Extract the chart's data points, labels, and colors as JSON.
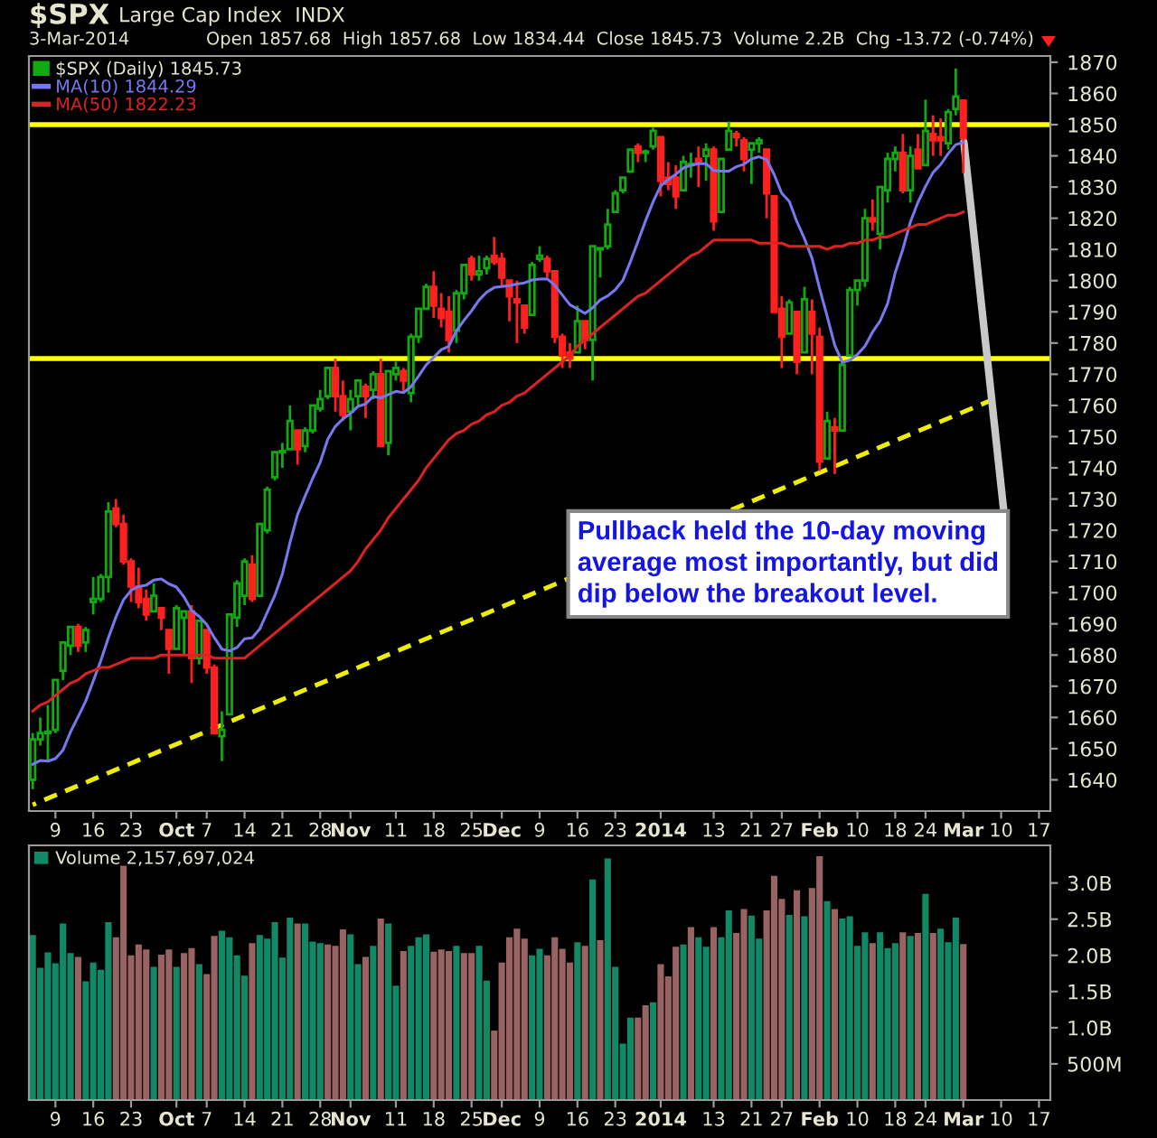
{
  "chart_data": [
    {
      "type": "candlestick",
      "title": "$SPX",
      "subtitle": "Large Cap Index  INDX",
      "annotations": [
        "3-Mar-2014",
        "Open 1857.68  High 1857.68  Low 1834.44  Close 1845.73  Volume 2.2B  Chg -13.72 (-0.74%)",
        {
          "text": "Pullback held the 10-day moving\naverage most importantly, but did\ndip below the breakout level.",
          "x": "Mar",
          "y": 1846
        }
      ],
      "categories": [
        null,
        null,
        null,
        "9",
        null,
        null,
        null,
        null,
        "16",
        null,
        null,
        null,
        null,
        "23",
        null,
        null,
        null,
        null,
        null,
        "Oct",
        null,
        null,
        null,
        "7",
        null,
        null,
        null,
        null,
        "14",
        null,
        null,
        null,
        null,
        "21",
        null,
        null,
        null,
        null,
        "28",
        null,
        null,
        null,
        "Nov",
        null,
        null,
        null,
        null,
        null,
        "11",
        null,
        null,
        null,
        null,
        "18",
        null,
        null,
        null,
        null,
        "25",
        null,
        null,
        null,
        "Dec",
        null,
        null,
        null,
        null,
        "9",
        null,
        null,
        null,
        null,
        "16",
        null,
        null,
        null,
        null,
        "23",
        null,
        null,
        null,
        null,
        null,
        "2014",
        null,
        null,
        null,
        null,
        null,
        null,
        "13",
        null,
        null,
        null,
        null,
        "21",
        null,
        null,
        null,
        "27",
        null,
        null,
        null,
        null,
        "Feb",
        null,
        null,
        null,
        null,
        "10",
        null,
        null,
        null,
        null,
        "18",
        null,
        null,
        null,
        "24",
        null,
        null,
        null,
        null,
        "Mar",
        null,
        null,
        null,
        null,
        "10",
        null,
        null,
        null,
        null,
        "17",
        null
      ],
      "series": [
        {
          "type": "candlestick",
          "name": "$SPX (Daily) 1845.73",
          "color": "#11aa11",
          "ohlc": [
            [
              1640,
              1655,
              1637,
              1653
            ],
            [
              1653,
              1660,
              1651,
              1655
            ],
            [
              1655,
              1664,
              1646,
              1655
            ],
            [
              1656,
              1672,
              1655,
              1672
            ],
            [
              1675,
              1684,
              1672,
              1684
            ],
            [
              1683,
              1689,
              1680,
              1689
            ],
            [
              1689,
              1690,
              1681,
              1683
            ],
            [
              1684,
              1689,
              1681,
              1688
            ],
            [
              1697,
              1705,
              1693,
              1698
            ],
            [
              1698,
              1706,
              1697,
              1705
            ],
            [
              1705,
              1729,
              1700,
              1726
            ],
            [
              1727,
              1730,
              1721,
              1722
            ],
            [
              1722,
              1725,
              1709,
              1710
            ],
            [
              1710,
              1711,
              1697,
              1702
            ],
            [
              1702,
              1708,
              1695,
              1697
            ],
            [
              1698,
              1701,
              1691,
              1693
            ],
            [
              1694,
              1703,
              1694,
              1699
            ],
            [
              1695,
              1695,
              1688,
              1692
            ],
            [
              1688,
              1688,
              1674,
              1682
            ],
            [
              1682,
              1696,
              1682,
              1695
            ],
            [
              1692,
              1694,
              1680,
              1694
            ],
            [
              1694,
              1696,
              1671,
              1679
            ],
            [
              1679,
              1691,
              1677,
              1691
            ],
            [
              1688,
              1688,
              1674,
              1676
            ],
            [
              1676,
              1677,
              1655,
              1655
            ],
            [
              1654,
              1662,
              1646,
              1656
            ],
            [
              1661,
              1693,
              1661,
              1693
            ],
            [
              1692,
              1704,
              1689,
              1703
            ],
            [
              1699,
              1711,
              1696,
              1710
            ],
            [
              1709,
              1712,
              1697,
              1698
            ],
            [
              1699,
              1722,
              1699,
              1722
            ],
            [
              1720,
              1734,
              1719,
              1733
            ],
            [
              1737,
              1745,
              1736,
              1745
            ],
            [
              1745,
              1748,
              1740,
              1745
            ],
            [
              1746,
              1760,
              1746,
              1755
            ],
            [
              1752,
              1752,
              1741,
              1746
            ],
            [
              1747,
              1753,
              1745,
              1752
            ],
            [
              1752,
              1760,
              1751,
              1760
            ],
            [
              1759,
              1765,
              1758,
              1762
            ],
            [
              1763,
              1772,
              1762,
              1772
            ],
            [
              1772,
              1775,
              1758,
              1763
            ],
            [
              1763,
              1768,
              1755,
              1757
            ],
            [
              1758,
              1765,
              1752,
              1762
            ],
            [
              1763,
              1768,
              1760,
              1768
            ],
            [
              1766,
              1767,
              1756,
              1763
            ],
            [
              1765,
              1771,
              1762,
              1770
            ],
            [
              1770,
              1775,
              1747,
              1747
            ],
            [
              1748,
              1771,
              1744,
              1771
            ],
            [
              1770,
              1774,
              1768,
              1772
            ],
            [
              1771,
              1772,
              1764,
              1768
            ],
            [
              1764,
              1783,
              1761,
              1782
            ],
            [
              1782,
              1791,
              1780,
              1791
            ],
            [
              1791,
              1799,
              1791,
              1798
            ],
            [
              1798,
              1803,
              1788,
              1792
            ],
            [
              1791,
              1796,
              1785,
              1788
            ],
            [
              1790,
              1795,
              1777,
              1781
            ],
            [
              1784,
              1797,
              1780,
              1796
            ],
            [
              1796,
              1805,
              1794,
              1805
            ],
            [
              1807,
              1808,
              1800,
              1802
            ],
            [
              1802,
              1808,
              1800,
              1803
            ],
            [
              1804,
              1808,
              1802,
              1807
            ],
            [
              1808,
              1814,
              1805,
              1806
            ],
            [
              1807,
              1809,
              1798,
              1801
            ],
            [
              1800,
              1800,
              1787,
              1795
            ],
            [
              1794,
              1800,
              1780,
              1793
            ],
            [
              1792,
              1792,
              1783,
              1785
            ],
            [
              1789,
              1806,
              1789,
              1805
            ],
            [
              1807,
              1811,
              1806,
              1808
            ],
            [
              1807,
              1808,
              1801,
              1803
            ],
            [
              1803,
              1803,
              1780,
              1782
            ],
            [
              1782,
              1783,
              1772,
              1776
            ],
            [
              1777,
              1780,
              1772,
              1775
            ],
            [
              1777,
              1792,
              1777,
              1787
            ],
            [
              1787,
              1787,
              1778,
              1781
            ],
            [
              1781,
              1811,
              1768,
              1811
            ],
            [
              1810,
              1810,
              1801,
              1810
            ],
            [
              1811,
              1823,
              1810,
              1818
            ],
            [
              1822,
              1829,
              1822,
              1828
            ],
            [
              1829,
              1833,
              1828,
              1833
            ],
            [
              1835,
              1842,
              1835,
              1842
            ],
            [
              1843,
              1844,
              1838,
              1841
            ],
            [
              1841,
              1842,
              1838,
              1841
            ],
            [
              1843,
              1849,
              1842,
              1848
            ],
            [
              1846,
              1846,
              1827,
              1832
            ],
            [
              1833,
              1838,
              1829,
              1831
            ],
            [
              1833,
              1837,
              1823,
              1827
            ],
            [
              1829,
              1840,
              1829,
              1838
            ],
            [
              1837,
              1841,
              1833,
              1837
            ],
            [
              1839,
              1843,
              1830,
              1838
            ],
            [
              1840,
              1844,
              1832,
              1842
            ],
            [
              1842,
              1843,
              1816,
              1819
            ],
            [
              1822,
              1839,
              1822,
              1839
            ],
            [
              1842,
              1851,
              1842,
              1848
            ],
            [
              1847,
              1848,
              1843,
              1846
            ],
            [
              1845,
              1846,
              1835,
              1839
            ],
            [
              1842,
              1844,
              1831,
              1844
            ],
            [
              1844,
              1846,
              1841,
              1845
            ],
            [
              1842,
              1842,
              1820,
              1828
            ],
            [
              1827,
              1827,
              1790,
              1790
            ],
            [
              1791,
              1795,
              1772,
              1782
            ],
            [
              1783,
              1794,
              1783,
              1793
            ],
            [
              1790,
              1790,
              1770,
              1774
            ],
            [
              1777,
              1798,
              1777,
              1794
            ],
            [
              1790,
              1794,
              1770,
              1783
            ],
            [
              1782,
              1785,
              1739,
              1742
            ],
            [
              1743,
              1758,
              1743,
              1755
            ],
            [
              1753,
              1756,
              1738,
              1752
            ],
            [
              1752,
              1774,
              1752,
              1773
            ],
            [
              1776,
              1798,
              1776,
              1797
            ],
            [
              1797,
              1800,
              1792,
              1800
            ],
            [
              1800,
              1823,
              1798,
              1820
            ],
            [
              1820,
              1826,
              1816,
              1819
            ],
            [
              1815,
              1830,
              1810,
              1830
            ],
            [
              1829,
              1841,
              1825,
              1839
            ],
            [
              1839,
              1843,
              1835,
              1841
            ],
            [
              1841,
              1847,
              1828,
              1829
            ],
            [
              1829,
              1843,
              1825,
              1840
            ],
            [
              1842,
              1847,
              1836,
              1836
            ],
            [
              1837,
              1858,
              1837,
              1848
            ],
            [
              1847,
              1853,
              1840,
              1845
            ],
            [
              1846,
              1852,
              1840,
              1845
            ],
            [
              1844,
              1855,
              1842,
              1854
            ],
            [
              1855,
              1868,
              1853,
              1859
            ],
            [
              1857.68,
              1857.68,
              1834.44,
              1845.73
            ],
            null,
            null,
            null,
            null,
            null,
            null,
            null,
            null,
            null,
            null,
            null
          ],
          "colors": [
            "#11aa11",
            "#11aa11",
            "#11aa11",
            "#11aa11",
            "#11aa11",
            "#11aa11",
            "#ff2020",
            "#11aa11",
            "#11aa11",
            "#11aa11",
            "#11aa11",
            "#ff2020",
            "#ff2020",
            "#ff2020",
            "#ff2020",
            "#ff2020",
            "#11aa11",
            "#ff2020",
            "#ff2020",
            "#11aa11",
            "#11aa11",
            "#ff2020",
            "#11aa11",
            "#ff2020",
            "#ff2020",
            "#11aa11",
            "#11aa11",
            "#11aa11",
            "#11aa11",
            "#ff2020",
            "#11aa11",
            "#11aa11",
            "#11aa11",
            "#11aa11",
            "#11aa11",
            "#ff2020",
            "#11aa11",
            "#11aa11",
            "#11aa11",
            "#11aa11",
            "#ff2020",
            "#ff2020",
            "#11aa11",
            "#11aa11",
            "#ff2020",
            "#11aa11",
            "#ff2020",
            "#11aa11",
            "#11aa11",
            "#ff2020",
            "#11aa11",
            "#11aa11",
            "#11aa11",
            "#ff2020",
            "#ff2020",
            "#ff2020",
            "#11aa11",
            "#11aa11",
            "#ff2020",
            "#11aa11",
            "#11aa11",
            "#ff2020",
            "#ff2020",
            "#ff2020",
            "#ff2020",
            "#ff2020",
            "#11aa11",
            "#11aa11",
            "#ff2020",
            "#ff2020",
            "#ff2020",
            "#ff2020",
            "#11aa11",
            "#ff2020",
            "#11aa11",
            "#11aa11",
            "#11aa11",
            "#11aa11",
            "#11aa11",
            "#11aa11",
            "#ff2020",
            "#11aa11",
            "#11aa11",
            "#ff2020",
            "#ff2020",
            "#ff2020",
            "#11aa11",
            "#11aa11",
            "#ff2020",
            "#11aa11",
            "#ff2020",
            "#11aa11",
            "#11aa11",
            "#ff2020",
            "#ff2020",
            "#11aa11",
            "#11aa11",
            "#ff2020",
            "#ff2020",
            "#ff2020",
            "#11aa11",
            "#ff2020",
            "#11aa11",
            "#ff2020",
            "#ff2020",
            "#11aa11",
            "#ff2020",
            "#11aa11",
            "#11aa11",
            "#11aa11",
            "#11aa11",
            "#ff2020",
            "#11aa11",
            "#11aa11",
            "#11aa11",
            "#ff2020",
            "#11aa11",
            "#ff2020",
            "#11aa11",
            "#ff2020",
            "#ff2020",
            "#11aa11",
            "#11aa11",
            "#ff2020",
            null,
            null,
            null,
            null,
            null,
            null,
            null,
            null,
            null,
            null,
            null
          ]
        },
        {
          "type": "line",
          "name": "MA(10) 1844.29",
          "color": "#7777ee",
          "values": [
            1645.0,
            1646.2,
            1646.0,
            1646.8,
            1649.5,
            1655.4,
            1660.2,
            1665.2,
            1671.7,
            1678.2,
            1685.5,
            1692.2,
            1697.7,
            1700.7,
            1702.0,
            1702.4,
            1704.0,
            1704.4,
            1702.8,
            1701.8,
            1698.6,
            1694.3,
            1692.4,
            1689.8,
            1685.6,
            1681.9,
            1681.3,
            1682.4,
            1685.2,
            1685.5,
            1688.3,
            1693.7,
            1699.1,
            1706.0,
            1716.0,
            1725.0,
            1730.9,
            1736.6,
            1741.8,
            1749.2,
            1753.3,
            1755.7,
            1757.4,
            1759.7,
            1760.5,
            1762.9,
            1762.4,
            1763.5,
            1764.5,
            1764.1,
            1766.0,
            1769.4,
            1773.0,
            1775.4,
            1777.9,
            1779.0,
            1783.9,
            1787.3,
            1790.3,
            1793.8,
            1796.3,
            1797.8,
            1798.1,
            1798.4,
            1798.9,
            1799.3,
            1800.2,
            1800.5,
            1800.6,
            1798.5,
            1795.4,
            1792.3,
            1790.9,
            1789.5,
            1791.3,
            1793.8,
            1795.1,
            1797.1,
            1800.1,
            1806.1,
            1812.6,
            1819.2,
            1825.3,
            1830.4,
            1832.4,
            1834.1,
            1836.1,
            1837.0,
            1837.5,
            1837.5,
            1835.3,
            1835.1,
            1835.1,
            1836.5,
            1837.3,
            1839.0,
            1839.7,
            1838.8,
            1834.0,
            1828.0,
            1825.4,
            1818.9,
            1813.5,
            1807.2,
            1797.5,
            1788.6,
            1779.3,
            1773.8,
            1774.5,
            1776.3,
            1779.0,
            1783.5,
            1787.1,
            1792.7,
            1802.6,
            1810.0,
            1818.8,
            1825.1,
            1830.2,
            1834.7,
            1837.2,
            1840.7,
            1843.6,
            1844.3,
            null,
            null,
            null,
            null,
            null,
            null,
            null,
            null,
            null,
            null,
            null
          ]
        },
        {
          "type": "line",
          "name": "MA(50) 1822.23",
          "color": "#dd2222",
          "values": [
            1662,
            1664,
            1665,
            1667,
            1669,
            1671,
            1672,
            1674,
            1675,
            1676,
            1676,
            1677,
            1678,
            1679,
            1679,
            1679,
            1679,
            1680,
            1680,
            1680,
            1680,
            1680,
            1680,
            1680,
            1679,
            1679,
            1679,
            1679,
            1679,
            1681,
            1683,
            1685,
            1687,
            1689,
            1691,
            1693,
            1695,
            1697,
            1699,
            1701,
            1703,
            1705,
            1707,
            1710,
            1714,
            1717,
            1720,
            1724,
            1727,
            1730,
            1733,
            1736,
            1740,
            1743,
            1746,
            1749,
            1751,
            1752,
            1754,
            1755,
            1757,
            1758,
            1760,
            1761,
            1763,
            1764,
            1766,
            1768,
            1770,
            1772,
            1774,
            1776,
            1779,
            1781,
            1783,
            1785,
            1787,
            1789,
            1791,
            1793,
            1795,
            1796,
            1798,
            1800,
            1802,
            1804,
            1806,
            1808,
            1809,
            1811,
            1813,
            1813,
            1813,
            1813,
            1813,
            1813,
            1812,
            1812,
            1812,
            1812,
            1811,
            1811,
            1811,
            1811,
            1811,
            1810,
            1811,
            1811,
            1812,
            1812,
            1813,
            1813,
            1814,
            1814,
            1815,
            1816,
            1817,
            1818,
            1818,
            1819,
            1820,
            1821,
            1821,
            1822,
            null,
            null,
            null,
            null,
            null,
            null,
            null,
            null,
            null,
            null,
            null
          ]
        },
        {
          "type": "line",
          "color": "#eeee00",
          "line_style": "dashed",
          "values": [
            1632,
            null,
            null,
            null,
            null,
            null,
            null,
            null,
            null,
            null,
            null,
            null,
            null,
            null,
            null,
            null,
            null,
            null,
            null,
            null,
            null,
            null,
            null,
            null,
            null,
            null,
            null,
            null,
            null,
            null,
            null,
            null,
            null,
            null,
            null,
            null,
            null,
            null,
            null,
            null,
            null,
            null,
            null,
            null,
            null,
            null,
            null,
            null,
            null,
            null,
            null,
            null,
            null,
            null,
            null,
            null,
            null,
            null,
            null,
            null,
            null,
            null,
            null,
            null,
            null,
            null,
            null,
            null,
            null,
            null,
            null,
            null,
            null,
            null,
            null,
            null,
            null,
            null,
            null,
            null,
            null,
            null,
            null,
            null,
            null,
            null,
            null,
            null,
            null,
            null,
            null,
            null,
            null,
            null,
            null,
            null,
            null,
            null,
            null,
            null,
            null,
            null,
            null,
            null,
            null,
            null,
            null,
            null,
            null,
            null,
            null,
            null,
            null,
            null,
            null,
            null,
            null,
            null,
            null,
            null,
            null,
            null,
            null,
            null,
            null,
            null,
            null,
            1762,
            null,
            null,
            null,
            null,
            null,
            null,
            null
          ]
        }
      ],
      "ref_lines": [
        {
          "axis": "y",
          "value": 1850,
          "color": "#ffff00"
        },
        {
          "axis": "y",
          "value": 1775,
          "color": "#ffff00"
        }
      ],
      "ylim": [
        1630,
        1872
      ],
      "yticks": [
        1640,
        1650,
        1660,
        1670,
        1680,
        1690,
        1700,
        1710,
        1720,
        1730,
        1740,
        1750,
        1760,
        1770,
        1780,
        1790,
        1800,
        1810,
        1820,
        1830,
        1840,
        1850,
        1860,
        1870
      ],
      "legend": "top left"
    },
    {
      "type": "bar",
      "categories": [
        null,
        null,
        null,
        "9",
        null,
        null,
        null,
        null,
        "16",
        null,
        null,
        null,
        null,
        "23",
        null,
        null,
        null,
        null,
        null,
        "Oct",
        null,
        null,
        null,
        "7",
        null,
        null,
        null,
        null,
        "14",
        null,
        null,
        null,
        null,
        "21",
        null,
        null,
        null,
        null,
        "28",
        null,
        null,
        null,
        "Nov",
        null,
        null,
        null,
        null,
        null,
        "11",
        null,
        null,
        null,
        null,
        "18",
        null,
        null,
        null,
        null,
        "25",
        null,
        null,
        null,
        "Dec",
        null,
        null,
        null,
        null,
        "9",
        null,
        null,
        null,
        null,
        "16",
        null,
        null,
        null,
        null,
        "23",
        null,
        null,
        null,
        null,
        null,
        "2014",
        null,
        null,
        null,
        null,
        null,
        null,
        "13",
        null,
        null,
        null,
        null,
        "21",
        null,
        null,
        null,
        "27",
        null,
        null,
        null,
        null,
        "Feb",
        null,
        null,
        null,
        null,
        "10",
        null,
        null,
        null,
        null,
        "18",
        null,
        null,
        null,
        "24",
        null,
        null,
        null,
        null,
        "Mar",
        null,
        null,
        null,
        null,
        "10",
        null,
        null,
        null,
        null,
        "17",
        null
      ],
      "series": [
        {
          "name": "Volume 2,157,697,024",
          "color": "#118866",
          "values": [
            2280000000,
            1830000000,
            2040000000,
            1890000000,
            2440000000,
            2030000000,
            1980000000,
            1640000000,
            1900000000,
            1800000000,
            2460000000,
            2250000000,
            3240000000,
            2000000000,
            2150000000,
            2080000000,
            1840000000,
            2010000000,
            2080000000,
            1840000000,
            2030000000,
            2100000000,
            1880000000,
            1740000000,
            2270000000,
            2340000000,
            2250000000,
            2000000000,
            1720000000,
            2170000000,
            2280000000,
            2230000000,
            2460000000,
            1970000000,
            2520000000,
            2440000000,
            2440000000,
            2190000000,
            2170000000,
            2150000000,
            2130000000,
            2360000000,
            2290000000,
            1880000000,
            1980000000,
            2130000000,
            2510000000,
            2440000000,
            1580000000,
            2060000000,
            2130000000,
            2250000000,
            2290000000,
            2050000000,
            2080000000,
            2060000000,
            2130000000,
            2030000000,
            2030000000,
            2130000000,
            1650000000,
            960000000,
            1900000000,
            2250000000,
            2370000000,
            2230000000,
            2000000000,
            2090000000,
            2000000000,
            2250000000,
            2090000000,
            1900000000,
            2180000000,
            2130000000,
            3050000000,
            2210000000,
            3340000000,
            1840000000,
            780000000,
            1140000000,
            1140000000,
            1310000000,
            1350000000,
            1880000000,
            1710000000,
            2120000000,
            2150000000,
            2390000000,
            2250000000,
            2120000000,
            2390000000,
            2250000000,
            2620000000,
            2310000000,
            2640000000,
            2550000000,
            2230000000,
            2620000000,
            3100000000,
            2780000000,
            2560000000,
            2900000000,
            2540000000,
            2930000000,
            3370000000,
            2750000000,
            2640000000,
            2510000000,
            2540000000,
            2130000000,
            2320000000,
            2170000000,
            2320000000,
            2100000000,
            2170000000,
            2320000000,
            2270000000,
            2310000000,
            2850000000,
            2310000000,
            2370000000,
            2180000000,
            2520000000,
            2157697024,
            null,
            null,
            null,
            null,
            null,
            null,
            null,
            null,
            null,
            null,
            null
          ],
          "colors": [
            "#118866",
            "#118866",
            "#118866",
            "#118866",
            "#118866",
            "#118866",
            "#9a6363",
            "#118866",
            "#118866",
            "#118866",
            "#118866",
            "#9a6363",
            "#9a6363",
            "#9a6363",
            "#9a6363",
            "#9a6363",
            "#118866",
            "#9a6363",
            "#9a6363",
            "#118866",
            "#9a6363",
            "#9a6363",
            "#118866",
            "#9a6363",
            "#9a6363",
            "#118866",
            "#118866",
            "#118866",
            "#118866",
            "#9a6363",
            "#118866",
            "#118866",
            "#118866",
            "#118866",
            "#118866",
            "#9a6363",
            "#118866",
            "#118866",
            "#118866",
            "#9a6363",
            "#9a6363",
            "#9a6363",
            "#118866",
            "#118866",
            "#9a6363",
            "#118866",
            "#9a6363",
            "#118866",
            "#118866",
            "#9a6363",
            "#118866",
            "#118866",
            "#118866",
            "#9a6363",
            "#9a6363",
            "#9a6363",
            "#118866",
            "#9a6363",
            "#9a6363",
            "#118866",
            "#118866",
            "#9a6363",
            "#9a6363",
            "#9a6363",
            "#9a6363",
            "#9a6363",
            "#118866",
            "#118866",
            "#9a6363",
            "#9a6363",
            "#9a6363",
            "#9a6363",
            "#118866",
            "#9a6363",
            "#118866",
            "#9a6363",
            "#118866",
            "#118866",
            "#118866",
            "#118866",
            "#9a6363",
            "#9a6363",
            "#118866",
            "#9a6363",
            "#9a6363",
            "#9a6363",
            "#118866",
            "#9a6363",
            "#118866",
            "#118866",
            "#9a6363",
            "#118866",
            "#118866",
            "#9a6363",
            "#9a6363",
            "#118866",
            "#118866",
            "#9a6363",
            "#9a6363",
            "#9a6363",
            "#118866",
            "#9a6363",
            "#118866",
            "#9a6363",
            "#9a6363",
            "#118866",
            "#9a6363",
            "#118866",
            "#118866",
            "#118866",
            "#118866",
            "#9a6363",
            "#118866",
            "#118866",
            "#118866",
            "#9a6363",
            "#118866",
            "#9a6363",
            "#118866",
            "#9a6363",
            "#118866",
            "#118866",
            "#118866",
            "#9a6363",
            null,
            null,
            null,
            null,
            null,
            null,
            null,
            null,
            null,
            null,
            null
          ]
        }
      ],
      "ylim": [
        0,
        3520000000
      ],
      "yticks": [
        {
          "value": 500000000,
          "label": "500M"
        },
        {
          "value": 1000000000,
          "label": "1.0B"
        },
        {
          "value": 1500000000,
          "label": "1.5B"
        },
        {
          "value": 2000000000,
          "label": "2.0B"
        },
        {
          "value": 2500000000,
          "label": "2.5B"
        },
        {
          "value": 3000000000,
          "label": "3.0B"
        }
      ],
      "legend": "top left"
    }
  ]
}
